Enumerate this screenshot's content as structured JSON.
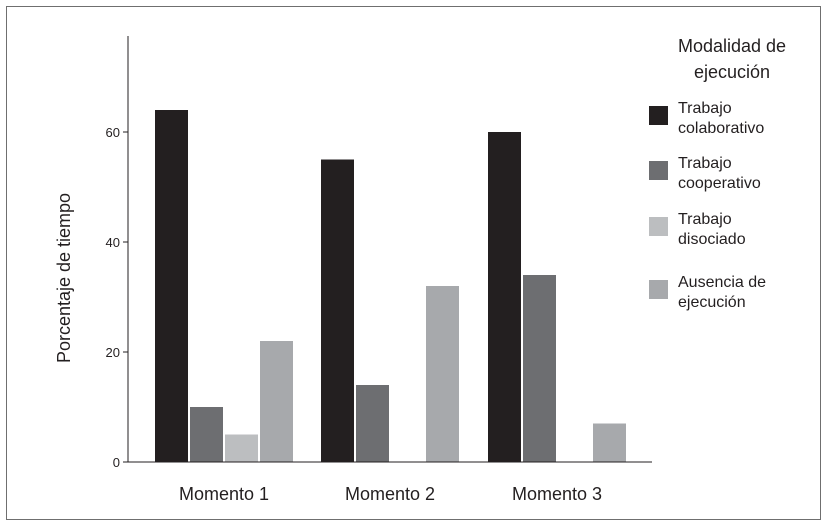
{
  "chart_data": {
    "type": "bar",
    "categories": [
      "Momento 1",
      "Momento 2",
      "Momento 3"
    ],
    "ylabel": "Porcentaje de tiempo",
    "xlabel": "",
    "ylim": [
      0,
      75
    ],
    "yticks": [
      0,
      20,
      40,
      60
    ],
    "grid": false,
    "legend_position": "right",
    "legend_title": [
      "Modalidad de",
      "ejecución"
    ],
    "series": [
      {
        "name": "Trabajo colaborativo",
        "name_lines": [
          "Trabajo",
          "colaborativo"
        ],
        "color": "#231f20",
        "values": [
          64,
          55,
          60
        ]
      },
      {
        "name": "Trabajo cooperativo",
        "name_lines": [
          "Trabajo",
          "cooperativo"
        ],
        "color": "#6d6e71",
        "values": [
          10,
          14,
          34
        ]
      },
      {
        "name": "Trabajo disociado",
        "name_lines": [
          "Trabajo",
          "disociado"
        ],
        "color": "#bcbec0",
        "values": [
          5,
          0,
          0
        ]
      },
      {
        "name": "Ausencia de ejecución",
        "name_lines": [
          "Ausencia de",
          "ejecución"
        ],
        "color": "#a7a9ac",
        "values": [
          22,
          32,
          7
        ]
      }
    ]
  }
}
